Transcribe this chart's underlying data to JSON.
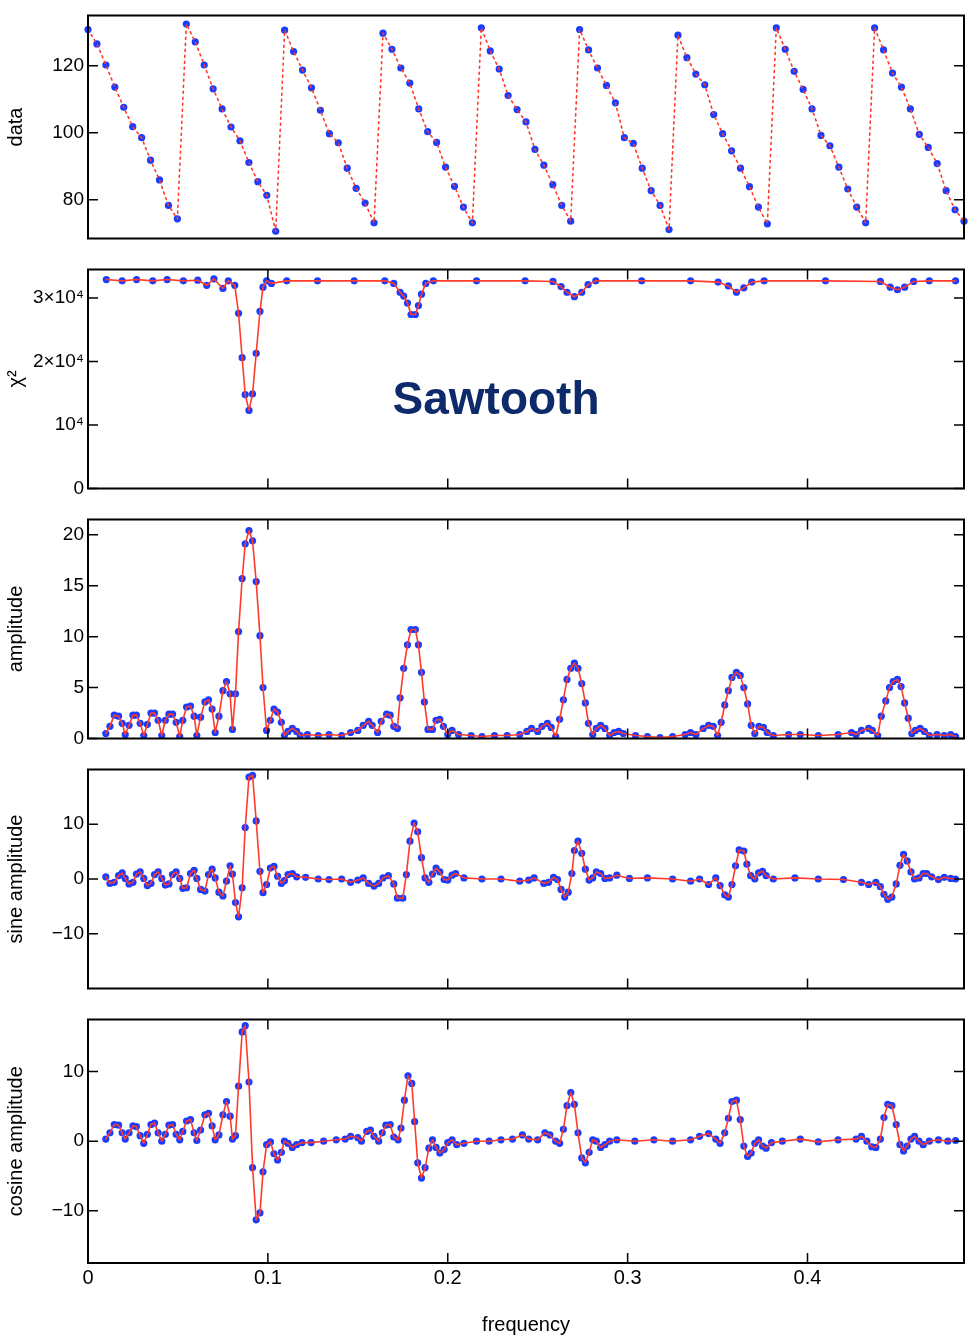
{
  "chart_data": [
    {
      "type": "line",
      "ylabel": "data",
      "ylim": [
        68.4,
        135
      ],
      "yticks": [
        80,
        100,
        120
      ],
      "tick_labels": "y",
      "grid": false,
      "legend": false,
      "marker": "none",
      "line_style": "dotted",
      "categories": [
        null,
        null,
        null,
        null,
        null,
        null,
        null,
        null,
        null,
        null,
        null,
        null,
        null,
        null,
        null,
        null,
        null,
        null,
        null,
        null,
        null,
        null,
        null,
        null,
        null,
        null,
        null,
        null,
        null,
        null,
        null,
        null,
        null,
        null,
        null,
        null,
        null,
        null,
        null,
        null,
        null,
        null,
        null,
        null,
        null,
        null,
        null,
        null,
        null,
        null,
        null,
        null,
        null,
        null,
        null,
        null,
        null,
        null,
        null,
        null,
        null,
        null,
        null,
        null,
        null,
        null,
        null,
        null,
        null,
        null,
        null,
        null,
        null,
        null,
        null,
        null,
        null,
        null,
        null,
        null,
        null,
        null,
        null,
        null,
        null,
        null,
        null,
        null,
        null,
        null,
        null,
        null,
        null,
        null,
        null,
        null,
        null,
        null,
        null
      ],
      "series": [
        {
          "color": "#ff3a2a",
          "values": [
            130.8,
            126.5,
            120.2,
            113.6,
            107.6,
            101.8,
            98.5,
            91.8,
            85.9,
            78.3,
            74.3,
            132.4,
            127.1,
            120.2,
            113.1,
            107.1,
            101.7,
            97.6,
            91.1,
            85.4,
            81.3,
            70.6,
            130.6,
            124.2,
            118.7,
            113.4,
            106.7,
            99.7,
            97,
            89.4,
            83.4,
            79,
            73.1,
            129.7,
            124.9,
            119.3,
            114.8,
            107.1,
            100.3,
            97.1,
            89.7,
            84,
            77.8,
            73.1,
            131.3,
            124.4,
            119,
            111.1,
            106.9,
            103.2,
            95,
            90.3,
            84.5,
            78.3,
            73.6,
            130.8,
            124.7,
            119.3,
            114.1,
            108.9,
            98.5,
            96.8,
            89.4,
            82.7,
            78.3,
            71.1,
            129.1,
            122.4,
            117.5,
            114.3,
            105.4,
            99.7,
            94.6,
            89.4,
            83.9,
            77.8,
            72.8,
            131.3,
            124.9,
            118.3,
            112.9,
            107.1,
            99.2,
            96.1,
            89.7,
            83.2,
            77.8,
            73.1,
            131.3,
            124.7,
            117.8,
            113.6,
            107.1,
            99.5,
            95.6,
            90.8,
            82.7,
            77,
            73.6
          ]
        },
        {
          "type": "scatter",
          "marker": "circle",
          "color": "#1a3cff",
          "values": [
            130.8,
            126.5,
            120.2,
            113.6,
            107.6,
            101.8,
            98.5,
            91.8,
            85.9,
            78.3,
            74.3,
            132.4,
            127.1,
            120.2,
            113.1,
            107.1,
            101.7,
            97.6,
            91.1,
            85.4,
            81.3,
            70.6,
            130.6,
            124.2,
            118.7,
            113.4,
            106.7,
            99.7,
            97,
            89.4,
            83.4,
            79,
            73.1,
            129.7,
            124.9,
            119.3,
            114.8,
            107.1,
            100.3,
            97.1,
            89.7,
            84,
            77.8,
            73.1,
            131.3,
            124.4,
            119,
            111.1,
            106.9,
            103.2,
            95,
            90.3,
            84.5,
            78.3,
            73.6,
            130.8,
            124.7,
            119.3,
            114.1,
            108.9,
            98.5,
            96.8,
            89.4,
            82.7,
            78.3,
            71.1,
            129.1,
            122.4,
            117.5,
            114.3,
            105.4,
            99.7,
            94.6,
            89.4,
            83.9,
            77.8,
            72.8,
            131.3,
            124.9,
            118.3,
            112.9,
            107.1,
            99.2,
            96.1,
            89.7,
            83.2,
            77.8,
            73.1,
            131.3,
            124.7,
            117.8,
            113.6,
            107.1,
            99.5,
            95.6,
            90.8,
            82.7,
            77,
            73.6
          ]
        }
      ]
    },
    {
      "type": "line",
      "ylabel": "χ²",
      "annotations": [
        "Sawtooth"
      ],
      "xlim": [
        0,
        0.487
      ],
      "xticks": [
        0,
        0.1,
        0.2,
        0.3,
        0.4
      ],
      "ylim": [
        0,
        34500
      ],
      "yticks": [
        0,
        {
          "value": 10000,
          "label": "10⁴"
        },
        {
          "value": 20000,
          "label": "2×10⁴"
        },
        {
          "value": 30000,
          "label": "3×10⁴"
        }
      ],
      "tick_labels": "y",
      "grid": false,
      "legend": false,
      "marker": "none",
      "line_style": "solid",
      "x": [
        0.0102,
        0.019,
        0.027,
        0.036,
        0.044,
        0.053,
        0.061,
        0.066,
        0.07,
        0.075,
        0.078,
        0.0816,
        0.0837,
        0.0857,
        0.0874,
        0.0895,
        0.0915,
        0.0935,
        0.0956,
        0.0973,
        0.0993,
        0.102,
        0.1105,
        0.1276,
        0.148,
        0.165,
        0.17,
        0.1735,
        0.1755,
        0.1776,
        0.1796,
        0.182,
        0.1837,
        0.1854,
        0.1878,
        0.192,
        0.216,
        0.243,
        0.2585,
        0.263,
        0.2663,
        0.2704,
        0.2745,
        0.278,
        0.2823,
        0.3078,
        0.335,
        0.3503,
        0.356,
        0.3605,
        0.3646,
        0.369,
        0.3759,
        0.41,
        0.4405,
        0.446,
        0.45,
        0.454,
        0.459,
        0.4677,
        0.4823
      ],
      "series": [
        {
          "color": "#ff3a2a",
          "values": [
            32900,
            32700,
            32900,
            32700,
            32900,
            32700,
            32800,
            32000,
            33000,
            31500,
            32700,
            32000,
            27600,
            20600,
            14800,
            12300,
            14900,
            21300,
            27900,
            31700,
            32700,
            32300,
            32700,
            32700,
            32700,
            32700,
            32300,
            30900,
            30300,
            29200,
            27400,
            27400,
            28800,
            30600,
            32300,
            32700,
            32700,
            32700,
            32600,
            31800,
            30900,
            30200,
            30900,
            32100,
            32700,
            32700,
            32700,
            32500,
            31900,
            30900,
            31600,
            32500,
            32700,
            32700,
            32600,
            31700,
            31300,
            31700,
            32600,
            32700,
            32700
          ]
        },
        {
          "type": "scatter",
          "marker": "circle",
          "color": "#1a3cff",
          "values": [
            32900,
            32700,
            32900,
            32700,
            32900,
            32700,
            32800,
            32000,
            33000,
            31500,
            32700,
            32000,
            27600,
            20600,
            14800,
            12300,
            14900,
            21300,
            27900,
            31700,
            32700,
            32300,
            32700,
            32700,
            32700,
            32700,
            32300,
            30900,
            30300,
            29200,
            27400,
            27400,
            28800,
            30600,
            32300,
            32700,
            32700,
            32700,
            32600,
            31800,
            30900,
            30200,
            30900,
            32100,
            32700,
            32700,
            32700,
            32500,
            31900,
            30900,
            31600,
            32500,
            32700,
            32700,
            32600,
            31700,
            31300,
            31700,
            32600,
            32700,
            32700
          ]
        }
      ]
    },
    {
      "type": "line",
      "ylabel": "amplitude",
      "xlim": [
        0,
        0.487
      ],
      "xticks": [
        0,
        0.1,
        0.2,
        0.3,
        0.4
      ],
      "ylim": [
        0,
        21.5
      ],
      "yticks": [
        0,
        5,
        10,
        15,
        20
      ],
      "tick_labels": "y",
      "grid": false,
      "legend": false,
      "marker": "none",
      "line_style": "solid",
      "x": [
        0.0099,
        0.0122,
        0.0146,
        0.017,
        0.019,
        0.0207,
        0.0228,
        0.025,
        0.0269,
        0.029,
        0.031,
        0.033,
        0.035,
        0.037,
        0.039,
        0.041,
        0.043,
        0.045,
        0.047,
        0.049,
        0.051,
        0.0527,
        0.0548,
        0.057,
        0.059,
        0.0605,
        0.0626,
        0.065,
        0.067,
        0.069,
        0.0707,
        0.0728,
        0.075,
        0.077,
        0.079,
        0.0803,
        0.082,
        0.0837,
        0.0857,
        0.0874,
        0.0895,
        0.0915,
        0.0935,
        0.0956,
        0.0973,
        0.0993,
        0.1014,
        0.1034,
        0.1054,
        0.1075,
        0.1092,
        0.1112,
        0.1136,
        0.116,
        0.118,
        0.122,
        0.128,
        0.134,
        0.141,
        0.146,
        0.15,
        0.153,
        0.156,
        0.158,
        0.161,
        0.163,
        0.166,
        0.168,
        0.17,
        0.172,
        0.1735,
        0.1755,
        0.1776,
        0.1796,
        0.182,
        0.1837,
        0.1854,
        0.187,
        0.189,
        0.1915,
        0.1935,
        0.1956,
        0.1976,
        0.2,
        0.2024,
        0.206,
        0.213,
        0.219,
        0.226,
        0.233,
        0.24,
        0.244,
        0.2466,
        0.25,
        0.2524,
        0.2554,
        0.2575,
        0.26,
        0.2622,
        0.2643,
        0.2663,
        0.2684,
        0.2704,
        0.2724,
        0.2745,
        0.2765,
        0.2782,
        0.2806,
        0.2826,
        0.285,
        0.2874,
        0.29,
        0.2925,
        0.295,
        0.2976,
        0.3044,
        0.311,
        0.318,
        0.325,
        0.332,
        0.335,
        0.338,
        0.342,
        0.345,
        0.3476,
        0.35,
        0.352,
        0.354,
        0.356,
        0.358,
        0.3605,
        0.3626,
        0.3646,
        0.3667,
        0.3687,
        0.3707,
        0.373,
        0.3755,
        0.3776,
        0.381,
        0.3895,
        0.396,
        0.406,
        0.417,
        0.4245,
        0.427,
        0.43,
        0.434,
        0.436,
        0.439,
        0.441,
        0.4435,
        0.4456,
        0.4476,
        0.45,
        0.452,
        0.454,
        0.456,
        0.458,
        0.46,
        0.4626,
        0.465,
        0.4677,
        0.472,
        0.476,
        0.4796,
        0.4823
      ],
      "series": [
        {
          "color": "#ff3a2a",
          "values": [
            0.5,
            1.2,
            2.3,
            2.2,
            1.5,
            0.4,
            1.3,
            2.3,
            2.3,
            1.5,
            0.3,
            1.4,
            2.5,
            2.5,
            1.8,
            0.3,
            1.8,
            2.4,
            2.4,
            1.6,
            0.2,
            1.8,
            3.1,
            3.2,
            2.2,
            0.3,
            2.1,
            3.6,
            3.8,
            2.9,
            0.6,
            2.2,
            4.7,
            5.6,
            4.4,
            0.9,
            4.4,
            10.5,
            15.7,
            19.1,
            20.4,
            19.4,
            15.4,
            10.1,
            5.0,
            0.8,
            1.8,
            2.9,
            2.6,
            1.6,
            0.3,
            0.7,
            1.0,
            0.7,
            0.3,
            0.4,
            0.3,
            0.4,
            0.3,
            0.6,
            0.8,
            1.3,
            1.7,
            1.3,
            0.6,
            1.7,
            2.4,
            2.3,
            1.2,
            1.0,
            4.0,
            6.9,
            9.2,
            10.7,
            10.7,
            9.2,
            6.5,
            3.6,
            0.9,
            0.9,
            1.8,
            1.9,
            1.2,
            0.4,
            0.8,
            0.4,
            0.3,
            0.2,
            0.3,
            0.3,
            0.4,
            0.7,
            1.0,
            0.7,
            1.2,
            1.5,
            1.1,
            0.2,
            1.9,
            3.8,
            5.8,
            6.9,
            7.4,
            6.9,
            5.4,
            3.5,
            1.5,
            0.4,
            1.0,
            1.3,
            1.0,
            0.3,
            0.6,
            0.7,
            0.5,
            0.3,
            0.2,
            0.1,
            0.2,
            0.4,
            0.6,
            0.4,
            1.0,
            1.3,
            1.2,
            0.3,
            1.6,
            3.3,
            4.7,
            6.0,
            6.5,
            6.2,
            5.0,
            3.4,
            1.3,
            0.5,
            1.2,
            1.1,
            0.6,
            0.3,
            0.4,
            0.4,
            0.3,
            0.4,
            0.6,
            0.4,
            0.8,
            1.0,
            0.8,
            0.3,
            2.2,
            3.7,
            5.0,
            5.6,
            5.8,
            5.1,
            3.5,
            2.0,
            0.5,
            0.8,
            1.0,
            0.7,
            0.3,
            0.4,
            0.3,
            0.4,
            0.2
          ]
        },
        {
          "type": "scatter",
          "marker": "circle",
          "color": "#1a3cff",
          "values": [
            0.5,
            1.2,
            2.3,
            2.2,
            1.5,
            0.4,
            1.3,
            2.3,
            2.3,
            1.5,
            0.3,
            1.4,
            2.5,
            2.5,
            1.8,
            0.3,
            1.8,
            2.4,
            2.4,
            1.6,
            0.2,
            1.8,
            3.1,
            3.2,
            2.2,
            0.3,
            2.1,
            3.6,
            3.8,
            2.9,
            0.6,
            2.2,
            4.7,
            5.6,
            4.4,
            0.9,
            4.4,
            10.5,
            15.7,
            19.1,
            20.4,
            19.4,
            15.4,
            10.1,
            5.0,
            0.8,
            1.8,
            2.9,
            2.6,
            1.6,
            0.3,
            0.7,
            1.0,
            0.7,
            0.3,
            0.4,
            0.3,
            0.4,
            0.3,
            0.6,
            0.8,
            1.3,
            1.7,
            1.3,
            0.6,
            1.7,
            2.4,
            2.3,
            1.2,
            1.0,
            4.0,
            6.9,
            9.2,
            10.7,
            10.7,
            9.2,
            6.5,
            3.6,
            0.9,
            0.9,
            1.8,
            1.9,
            1.2,
            0.4,
            0.8,
            0.4,
            0.3,
            0.2,
            0.3,
            0.3,
            0.4,
            0.7,
            1.0,
            0.7,
            1.2,
            1.5,
            1.1,
            0.2,
            1.9,
            3.8,
            5.8,
            6.9,
            7.4,
            6.9,
            5.4,
            3.5,
            1.5,
            0.4,
            1.0,
            1.3,
            1.0,
            0.3,
            0.6,
            0.7,
            0.5,
            0.3,
            0.2,
            0.1,
            0.2,
            0.4,
            0.6,
            0.4,
            1.0,
            1.3,
            1.2,
            0.3,
            1.6,
            3.3,
            4.7,
            6.0,
            6.5,
            6.2,
            5.0,
            3.4,
            1.3,
            0.5,
            1.2,
            1.1,
            0.6,
            0.3,
            0.4,
            0.4,
            0.3,
            0.4,
            0.6,
            0.4,
            0.8,
            1.0,
            0.8,
            0.3,
            2.2,
            3.7,
            5.0,
            5.6,
            5.8,
            5.1,
            3.5,
            2.0,
            0.5,
            0.8,
            1.0,
            0.7,
            0.3,
            0.4,
            0.3,
            0.4,
            0.2
          ]
        }
      ]
    },
    {
      "type": "line",
      "ylabel": "sine amplitude",
      "xlim": [
        0,
        0.487
      ],
      "xticks": [
        0,
        0.1,
        0.2,
        0.3,
        0.4
      ],
      "ylim": [
        -20,
        20
      ],
      "yticks": [
        {
          "value": -10,
          "label": "−10"
        },
        0,
        10
      ],
      "tick_labels": "y",
      "grid": false,
      "legend": false,
      "marker": "none",
      "line_style": "solid",
      "x": [
        0.0099,
        0.0122,
        0.0146,
        0.017,
        0.019,
        0.0207,
        0.0228,
        0.025,
        0.0269,
        0.029,
        0.031,
        0.033,
        0.035,
        0.037,
        0.039,
        0.041,
        0.043,
        0.045,
        0.047,
        0.049,
        0.051,
        0.0527,
        0.0548,
        0.057,
        0.059,
        0.0605,
        0.0626,
        0.065,
        0.067,
        0.069,
        0.0707,
        0.0728,
        0.075,
        0.077,
        0.079,
        0.0803,
        0.082,
        0.0837,
        0.0857,
        0.0874,
        0.0895,
        0.0915,
        0.0935,
        0.0956,
        0.0973,
        0.0993,
        0.1014,
        0.1034,
        0.1054,
        0.1075,
        0.1092,
        0.1112,
        0.1136,
        0.116,
        0.121,
        0.128,
        0.134,
        0.141,
        0.146,
        0.15,
        0.153,
        0.156,
        0.159,
        0.1616,
        0.164,
        0.167,
        0.17,
        0.172,
        0.175,
        0.177,
        0.179,
        0.1813,
        0.1833,
        0.1854,
        0.1874,
        0.1895,
        0.1915,
        0.1935,
        0.1956,
        0.198,
        0.2,
        0.2024,
        0.2044,
        0.209,
        0.219,
        0.2296,
        0.24,
        0.245,
        0.248,
        0.2534,
        0.256,
        0.2588,
        0.261,
        0.263,
        0.265,
        0.267,
        0.269,
        0.2704,
        0.2724,
        0.2745,
        0.2765,
        0.2786,
        0.2806,
        0.2826,
        0.285,
        0.2874,
        0.29,
        0.294,
        0.301,
        0.311,
        0.325,
        0.335,
        0.34,
        0.345,
        0.349,
        0.3514,
        0.354,
        0.356,
        0.358,
        0.36,
        0.362,
        0.3646,
        0.3663,
        0.3684,
        0.3707,
        0.3728,
        0.375,
        0.377,
        0.381,
        0.393,
        0.406,
        0.42,
        0.43,
        0.434,
        0.438,
        0.4405,
        0.4425,
        0.4446,
        0.4469,
        0.4493,
        0.4514,
        0.4534,
        0.4554,
        0.4575,
        0.4595,
        0.462,
        0.4643,
        0.4663,
        0.469,
        0.4728,
        0.476,
        0.4796,
        0.4823
      ],
      "series": [
        {
          "color": "#ff3a2a",
          "values": [
            0.4,
            -0.8,
            -0.6,
            0.6,
            1.1,
            0.1,
            -0.9,
            -0.6,
            0.9,
            1.3,
            0.1,
            -1.2,
            -0.8,
            0.8,
            1.3,
            0.1,
            -1.1,
            -0.9,
            0.8,
            1.3,
            0.1,
            -1.7,
            -1.6,
            1.0,
            1.6,
            0.1,
            -1.9,
            -2.2,
            0.8,
            1.8,
            0.2,
            -2.4,
            -3.1,
            -0.4,
            2.4,
            0.9,
            -4.3,
            -6.9,
            -1.6,
            9.4,
            18.6,
            18.9,
            10.6,
            1.4,
            -2.5,
            -1.0,
            2.0,
            2.3,
            0.5,
            -0.8,
            -0.3,
            0.8,
            1.0,
            0.4,
            0.3,
            0,
            -0.1,
            0,
            -0.6,
            -0.2,
            0.2,
            -0.8,
            -1.3,
            -0.8,
            0.2,
            0.6,
            -0.9,
            -3.5,
            -3.5,
            0.8,
            6.9,
            10.2,
            8.6,
            3.9,
            0.2,
            -0.6,
            0.9,
            2.0,
            1.3,
            -0.1,
            -0.2,
            0.7,
            1.0,
            0.2,
            0,
            0,
            -0.4,
            -0.2,
            0.2,
            -0.8,
            -0.6,
            0.3,
            -0.1,
            -1.9,
            -3.3,
            -2.4,
            1.0,
            5.2,
            6.9,
            4.7,
            1.8,
            -0.2,
            0.2,
            1.3,
            1.0,
            0.1,
            0.2,
            0.7,
            0.1,
            0.2,
            0,
            -0.4,
            0,
            -1.0,
            0.2,
            -1.2,
            -2.9,
            -3.3,
            -1.0,
            2.4,
            5.3,
            5.1,
            2.7,
            0.6,
            0,
            1.1,
            1.4,
            0.6,
            0,
            0.2,
            0,
            -0.1,
            -0.6,
            -1.0,
            -0.6,
            -1.4,
            -2.8,
            -3.7,
            -3.3,
            -0.9,
            2.5,
            4.5,
            3.3,
            1.3,
            0,
            0.2,
            1.0,
            1.0,
            0.4,
            -0.1,
            0.3,
            0.1,
            0
          ]
        },
        {
          "type": "scatter",
          "marker": "circle",
          "color": "#1a3cff",
          "values": [
            0.4,
            -0.8,
            -0.6,
            0.6,
            1.1,
            0.1,
            -0.9,
            -0.6,
            0.9,
            1.3,
            0.1,
            -1.2,
            -0.8,
            0.8,
            1.3,
            0.1,
            -1.1,
            -0.9,
            0.8,
            1.3,
            0.1,
            -1.7,
            -1.6,
            1.0,
            1.6,
            0.1,
            -1.9,
            -2.2,
            0.8,
            1.8,
            0.2,
            -2.4,
            -3.1,
            -0.4,
            2.4,
            0.9,
            -4.3,
            -6.9,
            -1.6,
            9.4,
            18.6,
            18.9,
            10.6,
            1.4,
            -2.5,
            -1.0,
            2.0,
            2.3,
            0.5,
            -0.8,
            -0.3,
            0.8,
            1.0,
            0.4,
            0.3,
            0,
            -0.1,
            0,
            -0.6,
            -0.2,
            0.2,
            -0.8,
            -1.3,
            -0.8,
            0.2,
            0.6,
            -0.9,
            -3.5,
            -3.5,
            0.8,
            6.9,
            10.2,
            8.6,
            3.9,
            0.2,
            -0.6,
            0.9,
            2.0,
            1.3,
            -0.1,
            -0.2,
            0.7,
            1.0,
            0.2,
            0,
            0,
            -0.4,
            -0.2,
            0.2,
            -0.8,
            -0.6,
            0.3,
            -0.1,
            -1.9,
            -3.3,
            -2.4,
            1.0,
            5.2,
            6.9,
            4.7,
            1.8,
            -0.2,
            0.2,
            1.3,
            1.0,
            0.1,
            0.2,
            0.7,
            0.1,
            0.2,
            0,
            -0.4,
            0,
            -1.0,
            0.2,
            -1.2,
            -2.9,
            -3.3,
            -1.0,
            2.4,
            5.3,
            5.1,
            2.7,
            0.6,
            0,
            1.1,
            1.4,
            0.6,
            0,
            0.2,
            0,
            -0.1,
            -0.6,
            -1.0,
            -0.6,
            -1.4,
            -2.8,
            -3.7,
            -3.3,
            -0.9,
            2.5,
            4.5,
            3.3,
            1.3,
            0,
            0.2,
            1.0,
            1.0,
            0.4,
            -0.1,
            0.3,
            0.1,
            0
          ]
        }
      ]
    },
    {
      "type": "line",
      "ylabel": "cosine amplitude",
      "xlabel": "frequency",
      "xlim": [
        0,
        0.487
      ],
      "xticks": [
        0,
        0.1,
        0.2,
        0.3,
        0.4
      ],
      "ylim": [
        -17.5,
        17.5
      ],
      "yticks": [
        {
          "value": -10,
          "label": "−10"
        },
        0,
        10
      ],
      "grid": false,
      "legend": false,
      "marker": "none",
      "line_style": "solid",
      "x": [
        0.0099,
        0.0122,
        0.0146,
        0.017,
        0.019,
        0.0207,
        0.0228,
        0.025,
        0.0269,
        0.029,
        0.031,
        0.033,
        0.035,
        0.037,
        0.039,
        0.041,
        0.043,
        0.045,
        0.047,
        0.049,
        0.051,
        0.0527,
        0.0548,
        0.057,
        0.059,
        0.0605,
        0.0626,
        0.065,
        0.067,
        0.069,
        0.0707,
        0.0728,
        0.075,
        0.077,
        0.079,
        0.0803,
        0.082,
        0.0837,
        0.0857,
        0.0874,
        0.0895,
        0.0915,
        0.0935,
        0.0956,
        0.0973,
        0.0993,
        0.1014,
        0.1034,
        0.1054,
        0.1075,
        0.1092,
        0.1112,
        0.1136,
        0.116,
        0.119,
        0.124,
        0.131,
        0.138,
        0.143,
        0.146,
        0.15,
        0.152,
        0.155,
        0.157,
        0.159,
        0.1616,
        0.1636,
        0.1656,
        0.168,
        0.17,
        0.1724,
        0.174,
        0.1759,
        0.1779,
        0.18,
        0.1816,
        0.1833,
        0.1854,
        0.1874,
        0.1895,
        0.1915,
        0.1935,
        0.1956,
        0.198,
        0.2,
        0.2024,
        0.205,
        0.209,
        0.216,
        0.223,
        0.2296,
        0.236,
        0.2415,
        0.245,
        0.25,
        0.254,
        0.2568,
        0.26,
        0.2622,
        0.2643,
        0.2663,
        0.2684,
        0.2704,
        0.2724,
        0.2745,
        0.2765,
        0.2786,
        0.2806,
        0.2826,
        0.285,
        0.2874,
        0.29,
        0.294,
        0.304,
        0.3146,
        0.325,
        0.335,
        0.34,
        0.345,
        0.349,
        0.3514,
        0.354,
        0.356,
        0.358,
        0.3605,
        0.3626,
        0.3646,
        0.3667,
        0.3687,
        0.3707,
        0.3728,
        0.375,
        0.377,
        0.38,
        0.386,
        0.396,
        0.406,
        0.417,
        0.427,
        0.43,
        0.433,
        0.4357,
        0.438,
        0.4405,
        0.4425,
        0.4446,
        0.4469,
        0.4493,
        0.4514,
        0.4534,
        0.4554,
        0.4575,
        0.4595,
        0.462,
        0.4643,
        0.4677,
        0.4728,
        0.478,
        0.4823
      ],
      "series": [
        {
          "color": "#ff3a2a",
          "values": [
            0.3,
            1.2,
            2.4,
            2.3,
            1.2,
            0.3,
            1.2,
            2.2,
            2.1,
            0.8,
            -0.3,
            1.0,
            2.4,
            2.6,
            1.2,
            0,
            1.0,
            2.3,
            2.4,
            1.0,
            0.2,
            1.4,
            2.9,
            3.1,
            1.2,
            0.1,
            1.6,
            3.8,
            4.0,
            2.2,
            0.2,
            0.9,
            3.8,
            5.7,
            3.6,
            0.3,
            0.8,
            7.9,
            15.7,
            16.6,
            8.5,
            -3.8,
            -11.3,
            -10.3,
            -4.4,
            -0.5,
            -0.1,
            -1.8,
            -2.7,
            -1.6,
            0,
            -0.3,
            -0.9,
            -0.5,
            -0.2,
            -0.2,
            0,
            0.2,
            0.3,
            0.7,
            0.5,
            0,
            1.4,
            1.6,
            0.7,
            0,
            1.2,
            2.3,
            2.4,
            0.6,
            0.2,
            1.9,
            5.9,
            9.4,
            8.3,
            2.8,
            -3.1,
            -5.3,
            -3.8,
            -1.0,
            0.2,
            -0.9,
            -1.7,
            -1.2,
            -0.2,
            0.2,
            -0.5,
            -0.3,
            0,
            0,
            0.2,
            0.3,
            0.9,
            0.3,
            0.2,
            1.2,
            0.9,
            0,
            -0.3,
            1.7,
            5.1,
            7.0,
            5.3,
            1.2,
            -2.4,
            -3.1,
            -1.6,
            0.2,
            0,
            -0.9,
            -0.5,
            0,
            0.2,
            0,
            0.2,
            0,
            0.2,
            0.7,
            1.1,
            0.3,
            -0.3,
            1.2,
            3.3,
            5.7,
            5.9,
            3.1,
            -0.7,
            -2.2,
            -1.7,
            -0.3,
            0.2,
            -0.7,
            -1.0,
            -0.2,
            0,
            0.3,
            -0.1,
            0.2,
            0.3,
            0.7,
            0,
            -0.8,
            -0.9,
            0.3,
            3.4,
            5.3,
            5.1,
            2.4,
            -0.5,
            -1.4,
            -0.7,
            0.3,
            0.7,
            0,
            -0.5,
            0,
            0.2,
            0,
            0.1
          ]
        },
        {
          "type": "scatter",
          "marker": "circle",
          "color": "#1a3cff",
          "values": [
            0.3,
            1.2,
            2.4,
            2.3,
            1.2,
            0.3,
            1.2,
            2.2,
            2.1,
            0.8,
            -0.3,
            1.0,
            2.4,
            2.6,
            1.2,
            0,
            1.0,
            2.3,
            2.4,
            1.0,
            0.2,
            1.4,
            2.9,
            3.1,
            1.2,
            0.1,
            1.6,
            3.8,
            4.0,
            2.2,
            0.2,
            0.9,
            3.8,
            5.7,
            3.6,
            0.3,
            0.8,
            7.9,
            15.7,
            16.6,
            8.5,
            -3.8,
            -11.3,
            -10.3,
            -4.4,
            -0.5,
            -0.1,
            -1.8,
            -2.7,
            -1.6,
            0,
            -0.3,
            -0.9,
            -0.5,
            -0.2,
            -0.2,
            0,
            0.2,
            0.3,
            0.7,
            0.5,
            0,
            1.4,
            1.6,
            0.7,
            0,
            1.2,
            2.3,
            2.4,
            0.6,
            0.2,
            1.9,
            5.9,
            9.4,
            8.3,
            2.8,
            -3.1,
            -5.3,
            -3.8,
            -1.0,
            0.2,
            -0.9,
            -1.7,
            -1.2,
            -0.2,
            0.2,
            -0.5,
            -0.3,
            0,
            0,
            0.2,
            0.3,
            0.9,
            0.3,
            0.2,
            1.2,
            0.9,
            0,
            -0.3,
            1.7,
            5.1,
            7.0,
            5.3,
            1.2,
            -2.4,
            -3.1,
            -1.6,
            0.2,
            0,
            -0.9,
            -0.5,
            0,
            0.2,
            0,
            0.2,
            0,
            0.2,
            0.7,
            1.1,
            0.3,
            -0.3,
            1.2,
            3.3,
            5.7,
            5.9,
            3.1,
            -0.7,
            -2.2,
            -1.7,
            -0.3,
            0.2,
            -0.7,
            -1.0,
            -0.2,
            0,
            0.3,
            -0.1,
            0.2,
            0.3,
            0.7,
            0,
            -0.8,
            -0.9,
            0.3,
            3.4,
            5.3,
            5.1,
            2.4,
            -0.5,
            -1.4,
            -0.7,
            0.3,
            0.7,
            0,
            -0.5,
            0,
            0.2,
            0,
            0.1
          ]
        }
      ]
    }
  ]
}
